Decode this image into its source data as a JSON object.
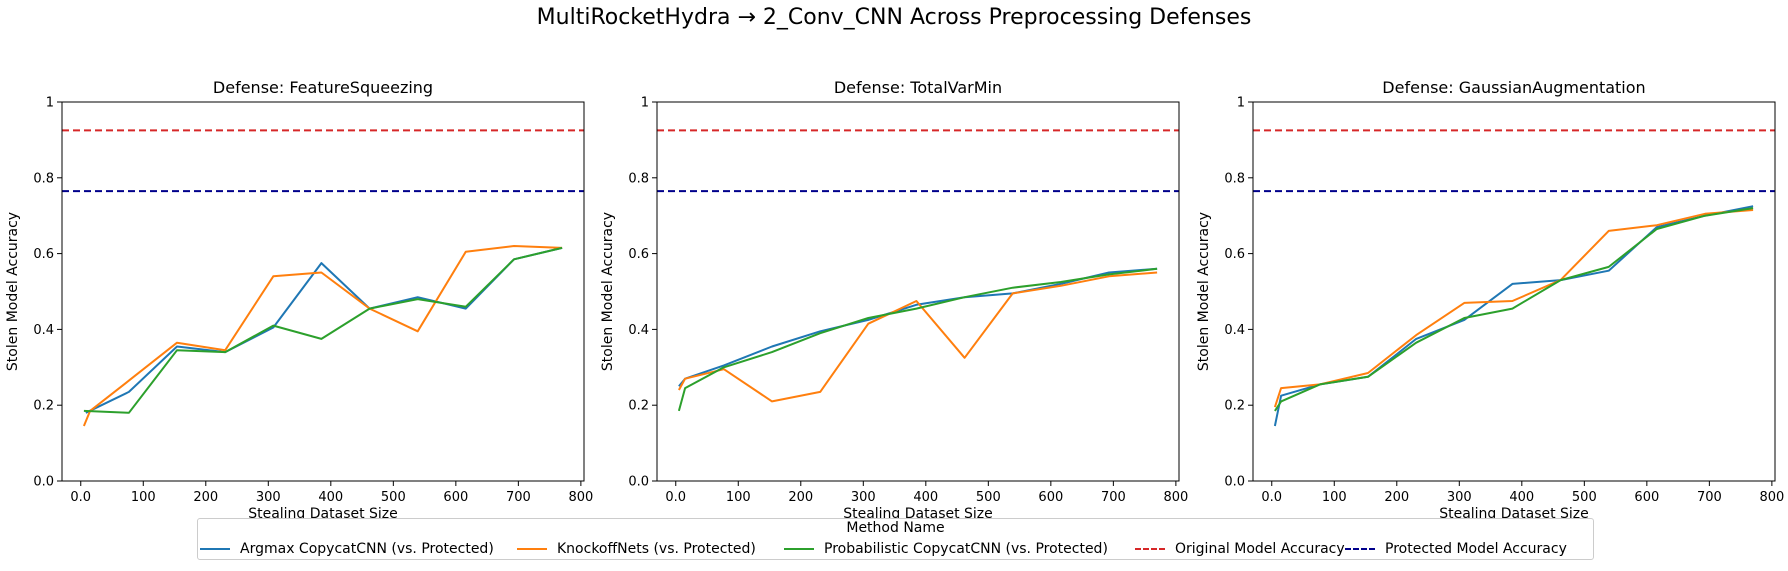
{
  "figure_title": "MultiRocketHydra → 2_Conv_CNN Across Preprocessing Defenses",
  "legend": {
    "title": "Method Name",
    "items": [
      {
        "label": "Argmax CopycatCNN (vs. Protected)",
        "color": "#1f77b4",
        "style": "solid"
      },
      {
        "label": "KnockoffNets (vs. Protected)",
        "color": "#ff7f0e",
        "style": "solid"
      },
      {
        "label": "Probabilistic CopycatCNN (vs. Protected)",
        "color": "#2ca02c",
        "style": "solid"
      },
      {
        "label": "Original Model Accuracy",
        "color": "#d62728",
        "style": "dashed"
      },
      {
        "label": "Protected Model Accuracy",
        "color": "#00008b",
        "style": "dashed"
      }
    ]
  },
  "chart_data": [
    {
      "type": "line",
      "title": "Defense: FeatureSqueezing",
      "xlabel": "Stealing Dataset Size",
      "ylabel": "Stolen Model Accuracy",
      "xlim": [
        -30,
        805
      ],
      "ylim": [
        0,
        1
      ],
      "xticks": [
        0,
        100,
        200,
        300,
        400,
        500,
        600,
        700,
        800
      ],
      "yticks": [
        0.0,
        0.2,
        0.4,
        0.6,
        0.8,
        1.0
      ],
      "hlines": [
        {
          "name": "Original Model Accuracy",
          "y": 0.925,
          "color": "#d62728"
        },
        {
          "name": "Protected Model Accuracy",
          "y": 0.765,
          "color": "#00008b"
        }
      ],
      "series": [
        {
          "name": "Argmax CopycatCNN (vs. Protected)",
          "color": "#1f77b4",
          "x": [
            8,
            77,
            154,
            231,
            308,
            385,
            462,
            539,
            616,
            693,
            770
          ],
          "y": [
            0.18,
            0.235,
            0.355,
            0.34,
            0.405,
            0.575,
            0.455,
            0.485,
            0.455,
            0.585,
            0.615
          ]
        },
        {
          "name": "KnockoffNets (vs. Protected)",
          "color": "#ff7f0e",
          "x": [
            5,
            15,
            77,
            154,
            231,
            308,
            385,
            462,
            539,
            616,
            693,
            770
          ],
          "y": [
            0.145,
            0.185,
            0.265,
            0.365,
            0.345,
            0.54,
            0.55,
            0.455,
            0.395,
            0.605,
            0.62,
            0.615
          ]
        },
        {
          "name": "Probabilistic CopycatCNN (vs. Protected)",
          "color": "#2ca02c",
          "x": [
            5,
            77,
            154,
            231,
            308,
            385,
            462,
            539,
            616,
            693,
            770
          ],
          "y": [
            0.185,
            0.18,
            0.345,
            0.34,
            0.41,
            0.375,
            0.455,
            0.48,
            0.46,
            0.585,
            0.615
          ]
        }
      ]
    },
    {
      "type": "line",
      "title": "Defense: TotalVarMin",
      "xlabel": "Stealing Dataset Size",
      "ylabel": "Stolen Model Accuracy",
      "xlim": [
        -30,
        805
      ],
      "ylim": [
        0,
        1
      ],
      "xticks": [
        0,
        100,
        200,
        300,
        400,
        500,
        600,
        700,
        800
      ],
      "yticks": [
        0.0,
        0.2,
        0.4,
        0.6,
        0.8,
        1.0
      ],
      "hlines": [
        {
          "name": "Original Model Accuracy",
          "y": 0.925,
          "color": "#d62728"
        },
        {
          "name": "Protected Model Accuracy",
          "y": 0.765,
          "color": "#00008b"
        }
      ],
      "series": [
        {
          "name": "Argmax CopycatCNN (vs. Protected)",
          "color": "#1f77b4",
          "x": [
            5,
            15,
            77,
            154,
            231,
            308,
            385,
            462,
            539,
            616,
            693,
            770
          ],
          "y": [
            0.25,
            0.27,
            0.305,
            0.355,
            0.395,
            0.425,
            0.465,
            0.485,
            0.495,
            0.52,
            0.55,
            0.56
          ]
        },
        {
          "name": "KnockoffNets (vs. Protected)",
          "color": "#ff7f0e",
          "x": [
            5,
            15,
            77,
            154,
            231,
            308,
            385,
            462,
            539,
            616,
            693,
            770
          ],
          "y": [
            0.24,
            0.27,
            0.295,
            0.21,
            0.235,
            0.415,
            0.475,
            0.325,
            0.495,
            0.515,
            0.54,
            0.55
          ]
        },
        {
          "name": "Probabilistic CopycatCNN (vs. Protected)",
          "color": "#2ca02c",
          "x": [
            5,
            15,
            77,
            154,
            231,
            308,
            385,
            462,
            539,
            616,
            693,
            770
          ],
          "y": [
            0.185,
            0.245,
            0.3,
            0.34,
            0.39,
            0.43,
            0.455,
            0.485,
            0.51,
            0.525,
            0.545,
            0.56
          ]
        }
      ]
    },
    {
      "type": "line",
      "title": "Defense: GaussianAugmentation",
      "xlabel": "Stealing Dataset Size",
      "ylabel": "Stolen Model Accuracy",
      "xlim": [
        -30,
        805
      ],
      "ylim": [
        0,
        1
      ],
      "xticks": [
        0,
        100,
        200,
        300,
        400,
        500,
        600,
        700,
        800
      ],
      "yticks": [
        0.0,
        0.2,
        0.4,
        0.6,
        0.8,
        1.0
      ],
      "hlines": [
        {
          "name": "Original Model Accuracy",
          "y": 0.925,
          "color": "#d62728"
        },
        {
          "name": "Protected Model Accuracy",
          "y": 0.765,
          "color": "#00008b"
        }
      ],
      "series": [
        {
          "name": "Argmax CopycatCNN (vs. Protected)",
          "color": "#1f77b4",
          "x": [
            5,
            15,
            77,
            154,
            231,
            308,
            385,
            462,
            539,
            616,
            693,
            770
          ],
          "y": [
            0.145,
            0.225,
            0.255,
            0.275,
            0.375,
            0.425,
            0.52,
            0.53,
            0.555,
            0.67,
            0.7,
            0.725
          ]
        },
        {
          "name": "KnockoffNets (vs. Protected)",
          "color": "#ff7f0e",
          "x": [
            5,
            15,
            77,
            154,
            231,
            308,
            385,
            462,
            539,
            616,
            693,
            770
          ],
          "y": [
            0.195,
            0.245,
            0.255,
            0.285,
            0.385,
            0.47,
            0.475,
            0.53,
            0.66,
            0.675,
            0.705,
            0.715
          ]
        },
        {
          "name": "Probabilistic CopycatCNN (vs. Protected)",
          "color": "#2ca02c",
          "x": [
            5,
            15,
            77,
            154,
            231,
            308,
            385,
            462,
            539,
            616,
            693,
            770
          ],
          "y": [
            0.185,
            0.21,
            0.255,
            0.275,
            0.365,
            0.43,
            0.455,
            0.53,
            0.565,
            0.665,
            0.7,
            0.72
          ]
        }
      ]
    }
  ]
}
